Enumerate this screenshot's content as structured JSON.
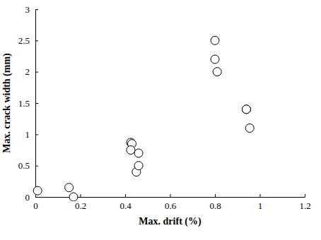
{
  "chart_data": {
    "type": "scatter",
    "x_label": "Max. drift (%)",
    "y_label": "Max. crack width (mm)",
    "x": [
      0.01,
      0.15,
      0.17,
      0.425,
      0.43,
      0.425,
      0.45,
      0.46,
      0.46,
      0.8,
      0.8,
      0.81,
      0.94,
      0.94,
      0.955
    ],
    "values": [
      0.1,
      0.15,
      0.0,
      0.87,
      0.85,
      0.75,
      0.4,
      0.5,
      0.7,
      2.5,
      2.2,
      2.0,
      1.4,
      1.4,
      1.1
    ],
    "xlim": [
      0,
      1.2
    ],
    "xticks": [
      0,
      0.2,
      0.4,
      0.6,
      0.8,
      1,
      1.2
    ],
    "ylim": [
      0,
      3
    ],
    "yticks": [
      0,
      0.5,
      1,
      1.5,
      2,
      2.5,
      3
    ],
    "color": "#000000",
    "marker": "circle",
    "grid": false
  }
}
